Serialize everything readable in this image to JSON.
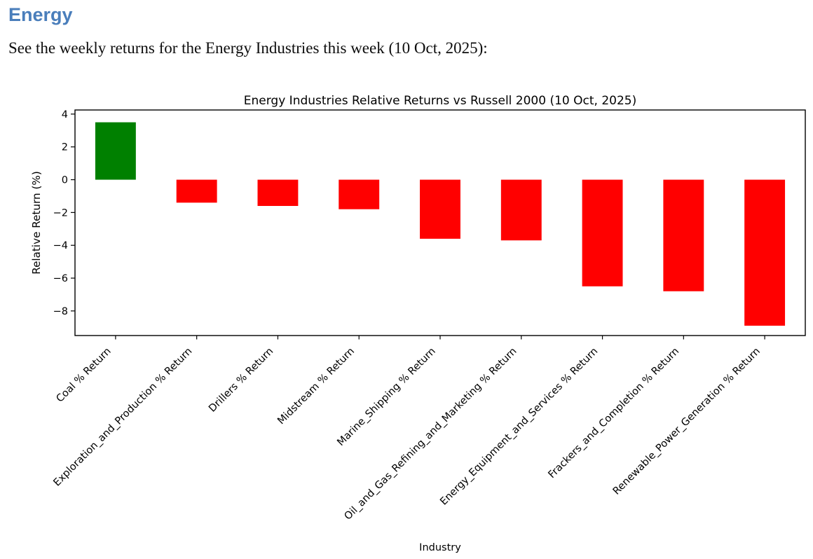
{
  "header": {
    "title": "Energy",
    "title_color": "#4a7ebb",
    "subtitle": "See the weekly returns for the Energy Industries this week (10 Oct, 2025):"
  },
  "chart_data": {
    "type": "bar",
    "title": "Energy Industries Relative Returns vs Russell 2000 (10 Oct, 2025)",
    "xlabel": "Industry",
    "ylabel": "Relative Return (%)",
    "categories": [
      "Coal % Return",
      "Exploration_and_Production % Return",
      "Drillers % Return",
      "Midstream % Return",
      "Marine_Shipping % Return",
      "Oil_and_Gas_Refining_and_Marketing % Return",
      "Energy_Equipment_and_Services % Return",
      "Frackers_and_Completion % Return",
      "Renewable_Power_Generation % Return"
    ],
    "values": [
      3.5,
      -1.4,
      -1.6,
      -1.8,
      -3.6,
      -3.7,
      -6.5,
      -6.8,
      -8.9
    ],
    "yticks": [
      4,
      2,
      0,
      -2,
      -4,
      -6,
      -8
    ],
    "ylim": [
      -9.5,
      4.25
    ],
    "bar_width_fraction": 0.5,
    "positive_color": "#008000",
    "negative_color": "#ff0000",
    "grid": false,
    "legend": "none",
    "plot_background": "#ffffff",
    "spine_color": "#000000"
  }
}
